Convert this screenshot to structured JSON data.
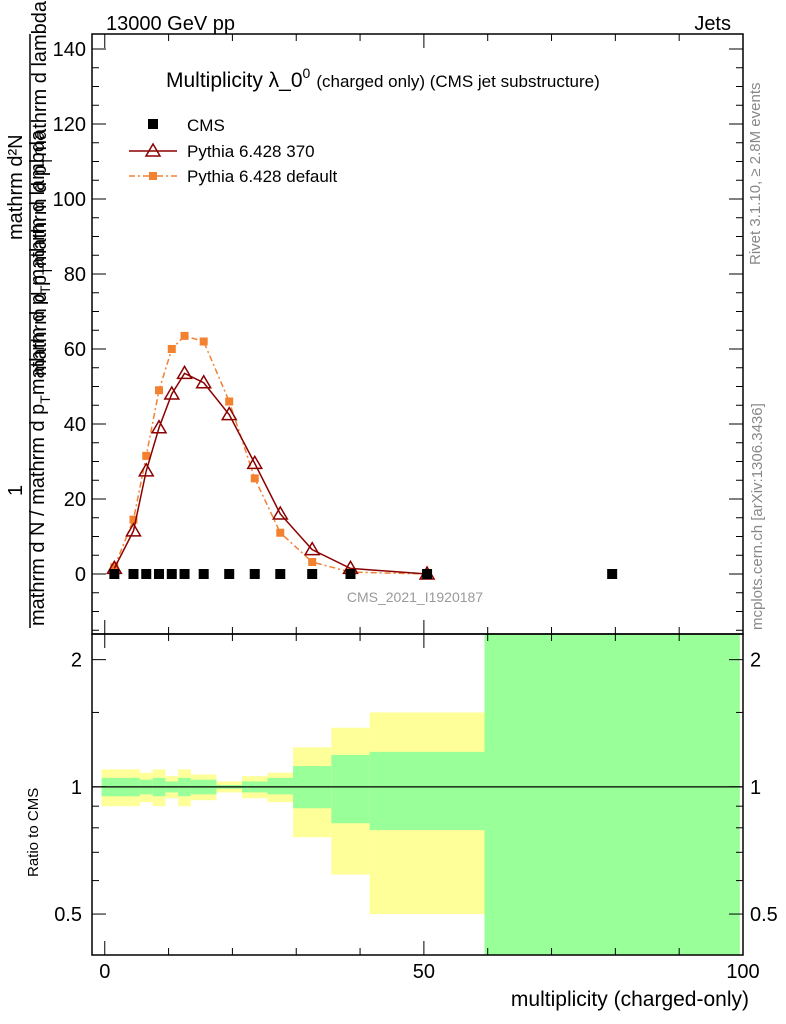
{
  "header": {
    "left": "13000 GeV pp",
    "right": "Jets"
  },
  "side_labels": {
    "rivet": "Rivet 3.1.10, ≥ 2.8M events",
    "mcplots": "mcplots.cern.ch [arXiv:1306.3436]"
  },
  "colors": {
    "cms": "#000000",
    "pythia_370": "#8b0000",
    "pythia_default": "#f28130",
    "band_inner": "#99ff99",
    "band_outer": "#ffff99"
  },
  "chart_data": [
    {
      "type": "line",
      "title_main": "Multiplicity λ_0",
      "title_sup": "0",
      "title_small": "(charged only) (CMS jet substructure)",
      "watermark": "CMS_2021_I1920187",
      "ylabel_upper": "mathrm d²N",
      "ylabel_upper2": "mathrm d p_T mathrm d p_T mathrm d lambda",
      "ylabel_one": "1",
      "ylabel_lower": "mathrm d N / mathrm d p_T mathrm d p_T mathrm d lambda",
      "ylabel_display": {
        "numerator": "mathrm d²N",
        "denominator_a": "mathrm d p",
        "denominator_b": "mathrm d p",
        "denominator_c": "mathrm d lambda",
        "sub": "T",
        "one": "1",
        "lower_a": "mathrm d N / mathrm d p",
        "lower_b": "mathrm d p",
        "lower_c": "mathrm d lambda"
      },
      "xlim": [
        -2,
        100
      ],
      "ylim": [
        -16,
        144
      ],
      "yticks": [
        0,
        20,
        40,
        60,
        80,
        100,
        120,
        140
      ],
      "tick_labels": [
        "0",
        "20",
        "40",
        "60",
        "80",
        "100",
        "120",
        "140"
      ],
      "legend": [
        {
          "key": "cms",
          "label": "CMS"
        },
        {
          "key": "pythia_370",
          "label": "Pythia 6.428 370"
        },
        {
          "key": "pythia_default",
          "label": "Pythia 6.428 default"
        }
      ],
      "series": [
        {
          "name": "CMS",
          "x": [
            1.5,
            4.5,
            6.5,
            8.5,
            10.5,
            12.5,
            15.5,
            19.5,
            23.5,
            27.5,
            32.5,
            38.5,
            50.5,
            79.5
          ],
          "values": [
            0,
            0,
            0,
            0,
            0,
            0,
            0,
            0,
            0,
            0,
            0,
            0,
            0,
            0
          ]
        },
        {
          "name": "Pythia 6.428 370",
          "x": [
            1.5,
            4.5,
            6.5,
            8.5,
            10.5,
            12.5,
            15.5,
            19.5,
            23.5,
            27.5,
            32.5,
            38.5,
            50.5
          ],
          "values": [
            1.5,
            11.5,
            27.5,
            39,
            48,
            53.5,
            51,
            42.5,
            29.5,
            16,
            6.5,
            1.5,
            0
          ]
        },
        {
          "name": "Pythia 6.428 default",
          "x": [
            1.5,
            4.5,
            6.5,
            8.5,
            10.5,
            12.5,
            15.5,
            19.5,
            23.5,
            27.5,
            32.5,
            38.5,
            50.5
          ],
          "values": [
            1.8,
            14.5,
            31.5,
            49,
            60,
            63.5,
            62,
            46,
            25.5,
            11,
            3.2,
            0.5,
            0
          ]
        }
      ]
    },
    {
      "type": "area",
      "ylabel": "Ratio to CMS",
      "xlabel": "multiplicity (charged-only)",
      "xlim": [
        -2,
        100
      ],
      "ylim": [
        0.4,
        2.3
      ],
      "xticks": [
        0,
        50,
        100
      ],
      "xtick_labels": [
        "0",
        "50",
        "100"
      ],
      "yticks": [
        0.5,
        1,
        2
      ],
      "ytick_labels": [
        "0.5",
        "1",
        "2"
      ],
      "reference_line": 1,
      "bins": [
        {
          "x0": -0.5,
          "x1": 5.5,
          "inner": [
            0.95,
            1.05
          ],
          "outer": [
            0.9,
            1.1
          ]
        },
        {
          "x0": 5.5,
          "x1": 7.5,
          "inner": [
            0.96,
            1.04
          ],
          "outer": [
            0.92,
            1.08
          ]
        },
        {
          "x0": 7.5,
          "x1": 9.5,
          "inner": [
            0.95,
            1.05
          ],
          "outer": [
            0.9,
            1.1
          ]
        },
        {
          "x0": 9.5,
          "x1": 11.5,
          "inner": [
            0.97,
            1.03
          ],
          "outer": [
            0.94,
            1.06
          ]
        },
        {
          "x0": 11.5,
          "x1": 13.5,
          "inner": [
            0.95,
            1.05
          ],
          "outer": [
            0.9,
            1.1
          ]
        },
        {
          "x0": 13.5,
          "x1": 17.5,
          "inner": [
            0.96,
            1.04
          ],
          "outer": [
            0.93,
            1.07
          ]
        },
        {
          "x0": 17.5,
          "x1": 21.5,
          "inner": [
            0.99,
            1.01
          ],
          "outer": [
            0.97,
            1.03
          ]
        },
        {
          "x0": 21.5,
          "x1": 25.5,
          "inner": [
            0.97,
            1.03
          ],
          "outer": [
            0.94,
            1.06
          ]
        },
        {
          "x0": 25.5,
          "x1": 29.5,
          "inner": [
            0.96,
            1.05
          ],
          "outer": [
            0.92,
            1.08
          ]
        },
        {
          "x0": 29.5,
          "x1": 35.5,
          "inner": [
            0.89,
            1.12
          ],
          "outer": [
            0.76,
            1.24
          ]
        },
        {
          "x0": 35.5,
          "x1": 41.5,
          "inner": [
            0.82,
            1.19
          ],
          "outer": [
            0.62,
            1.38
          ]
        },
        {
          "x0": 41.5,
          "x1": 59.5,
          "inner": [
            0.79,
            1.21
          ],
          "outer": [
            0.5,
            1.5
          ]
        },
        {
          "x0": 59.5,
          "x1": 99.5,
          "inner": [
            0.4,
            2.3
          ],
          "outer": [
            0.4,
            2.3
          ]
        }
      ]
    }
  ]
}
